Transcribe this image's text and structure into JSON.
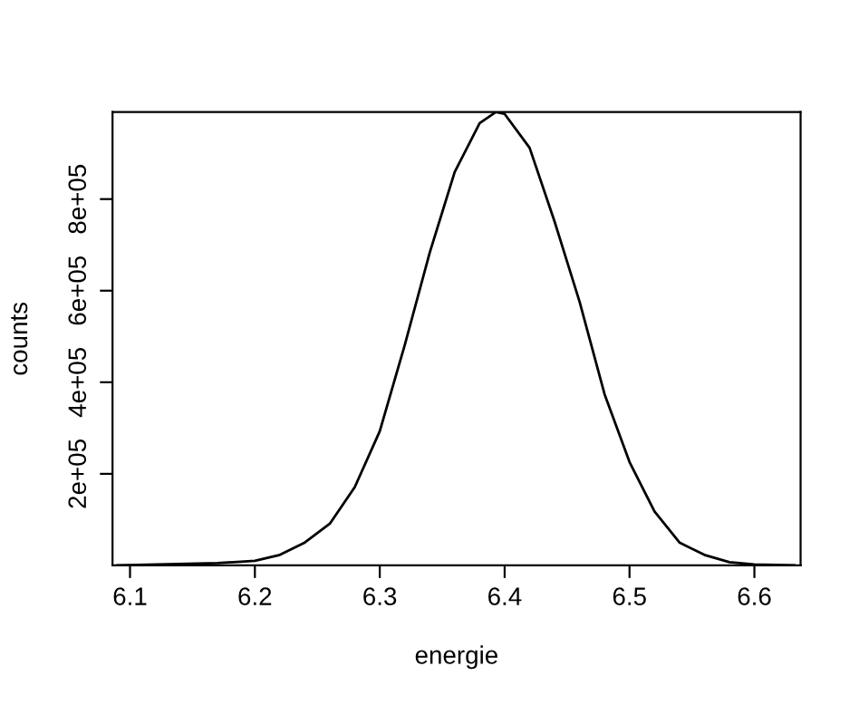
{
  "chart_data": {
    "type": "line",
    "xlabel": "energie",
    "ylabel": "counts",
    "x": [
      6.09,
      6.17,
      6.2,
      6.22,
      6.24,
      6.26,
      6.28,
      6.3,
      6.32,
      6.34,
      6.36,
      6.38,
      6.393,
      6.4,
      6.42,
      6.44,
      6.46,
      6.48,
      6.5,
      6.52,
      6.54,
      6.56,
      6.58,
      6.6,
      6.632
    ],
    "series": [
      {
        "color": "#000000",
        "values": [
          0,
          5000,
          10000,
          23000,
          50000,
          91000,
          171000,
          293000,
          481000,
          683000,
          859000,
          966000,
          990000,
          986000,
          912000,
          751000,
          576000,
          374000,
          226000,
          118000,
          50000,
          23000,
          7000,
          2000,
          0
        ]
      }
    ],
    "xlim": [
      6.086,
      6.637
    ],
    "ylim": [
      0,
      990000
    ],
    "xticks": [
      6.1,
      6.2,
      6.3,
      6.4,
      6.5,
      6.6
    ],
    "yticks": [
      {
        "value": 200000,
        "label": "2e+05"
      },
      {
        "value": 400000,
        "label": "4e+05"
      },
      {
        "value": 600000,
        "label": "6e+05"
      },
      {
        "value": 800000,
        "label": "8e+05"
      }
    ],
    "grid": false,
    "legend": false,
    "marker": "none",
    "line_style": "solid"
  }
}
